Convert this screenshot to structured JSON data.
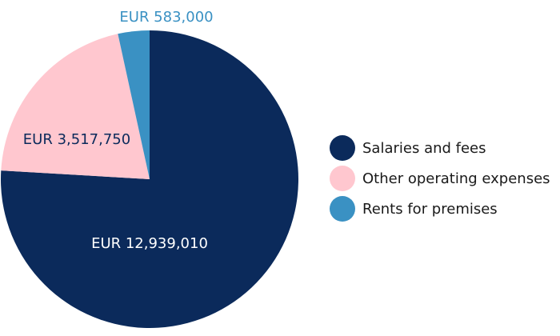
{
  "chart_data": {
    "type": "pie",
    "slices": [
      {
        "label": "Salaries and fees",
        "value": 12939010,
        "value_label": "EUR 12,939,010",
        "color": "#0b2a5b",
        "label_color": "#ffffff"
      },
      {
        "label": "Other operating expenses",
        "value": 3517750,
        "value_label": "EUR 3,517,750",
        "color": "#ffc7cf",
        "label_color": "#0b2a5b"
      },
      {
        "label": "Rents for premises",
        "value": 583000,
        "value_label": "EUR 583,000",
        "color": "#3a91c3",
        "label_color": "#3a91c3"
      }
    ],
    "legend_position": "right"
  }
}
